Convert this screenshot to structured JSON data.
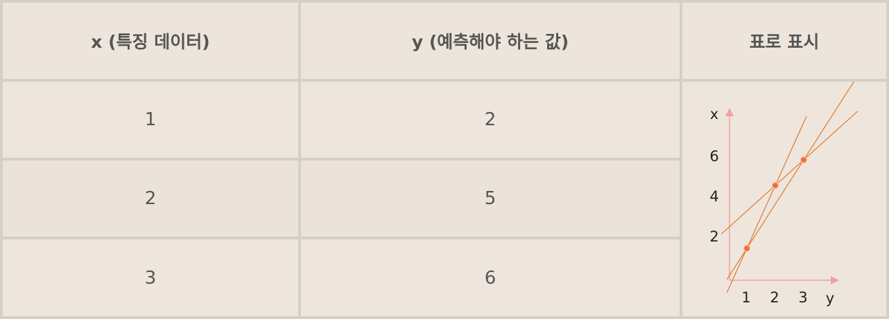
{
  "table": {
    "headers": [
      "x (특징 데이터)",
      "y (예측해야 하는 값)",
      "표로 표시"
    ],
    "rows": [
      {
        "x": "1",
        "y": "2"
      },
      {
        "x": "2",
        "y": "5"
      },
      {
        "x": "3",
        "y": "6"
      }
    ]
  },
  "chart_data": {
    "type": "scatter",
    "xlabel": "y",
    "ylabel": "x",
    "x_ticks": [
      "1",
      "2",
      "3"
    ],
    "y_ticks": [
      "2",
      "4",
      "6"
    ],
    "points": [
      {
        "x": 1,
        "y": 2
      },
      {
        "x": 2,
        "y": 5
      },
      {
        "x": 3,
        "y": 6
      }
    ],
    "lines_count": 3,
    "axis_color": "#f0a0a0",
    "line_color": "#e0782a",
    "point_color": "#f06a3a"
  }
}
